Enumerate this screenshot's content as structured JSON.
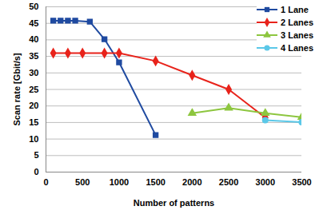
{
  "chart_data": {
    "type": "line",
    "x_label": "Number of patterns",
    "y_label": "Scan rate [Gbit/s]",
    "xlim": [
      0,
      3500
    ],
    "xticks": [
      0,
      500,
      1000,
      1500,
      2000,
      2500,
      3000,
      3500
    ],
    "ylim": [
      0,
      50
    ],
    "yticks": [
      0,
      5,
      10,
      15,
      20,
      25,
      30,
      35,
      40,
      45,
      50
    ],
    "grid": true,
    "legend": "upper right",
    "series": [
      {
        "name": "1 Lane",
        "color": "#1f4aa0",
        "marker": "square",
        "x": [
          100,
          200,
          300,
          400,
          600,
          800,
          1000,
          1500
        ],
        "values": [
          45.8,
          45.8,
          45.8,
          45.8,
          45.5,
          40.2,
          33.2,
          11.2
        ]
      },
      {
        "name": "2 Lanes",
        "color": "#e8231b",
        "marker": "diamond",
        "x": [
          100,
          300,
          500,
          800,
          1000,
          1500,
          2000,
          2500,
          3000
        ],
        "values": [
          36,
          36,
          36,
          36,
          36,
          33.6,
          29.3,
          25,
          16.5
        ]
      },
      {
        "name": "3 Lanes",
        "color": "#8dc63f",
        "marker": "triangle",
        "x": [
          2000,
          2500,
          3000,
          3500
        ],
        "values": [
          17.8,
          19.4,
          17.8,
          16.6
        ]
      },
      {
        "name": "4 Lanes",
        "color": "#5bc8e8",
        "marker": "circle",
        "x": [
          3000,
          3500
        ],
        "values": [
          15.7,
          15.1
        ]
      }
    ]
  }
}
